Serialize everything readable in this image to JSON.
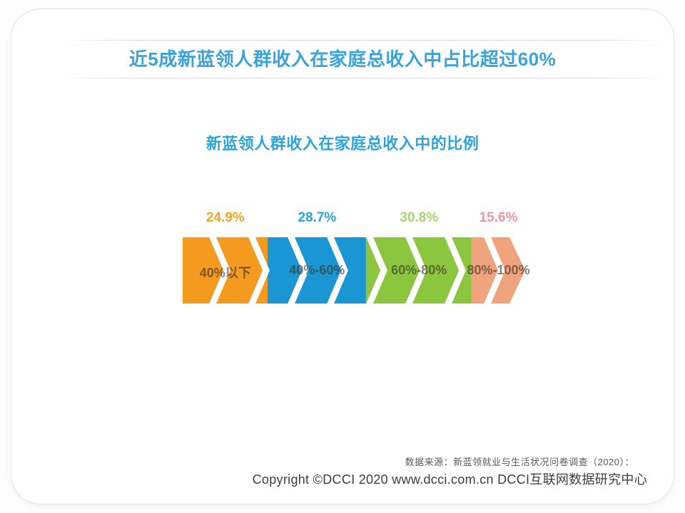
{
  "page": {
    "title": "近5成新蓝领人群收入在家庭总收入中占比超过60%"
  },
  "chart_data": {
    "type": "bar",
    "title": "新蓝领人群收入在家庭总收入中的比例",
    "categories": [
      "40%以下",
      "40%-60%",
      "60%-80%",
      "80%-100%"
    ],
    "values": [
      24.9,
      28.7,
      30.8,
      15.6
    ],
    "display_values": [
      "24.9%",
      "28.7%",
      "30.8%",
      "15.6%"
    ],
    "unit": "percent",
    "orientation": "horizontal-arrow-strip",
    "segment_colors": [
      "#F49A1E",
      "#1B96D4",
      "#8CC63F",
      "#EFA47E"
    ],
    "value_label_colors": [
      "#F5A41F",
      "#2AA3DE",
      "#A6D86A",
      "#F295A2"
    ],
    "separator_color": "#FFFFFF",
    "xlim": [
      0,
      100
    ],
    "grid": false,
    "legend": "none"
  },
  "footer": {
    "source": "数据来源：新蓝领就业与生活状况问卷调查（2020）：",
    "copyright": "Copyright ©DCCI 2020  www.dcci.com.cn  DCCI互联网数据研究中心"
  },
  "theme": {
    "title_color": "#38A3DC",
    "subtitle_color": "#2BA4DE",
    "card_background": "#FFFFFF",
    "card_border": "#E4E4E4"
  }
}
